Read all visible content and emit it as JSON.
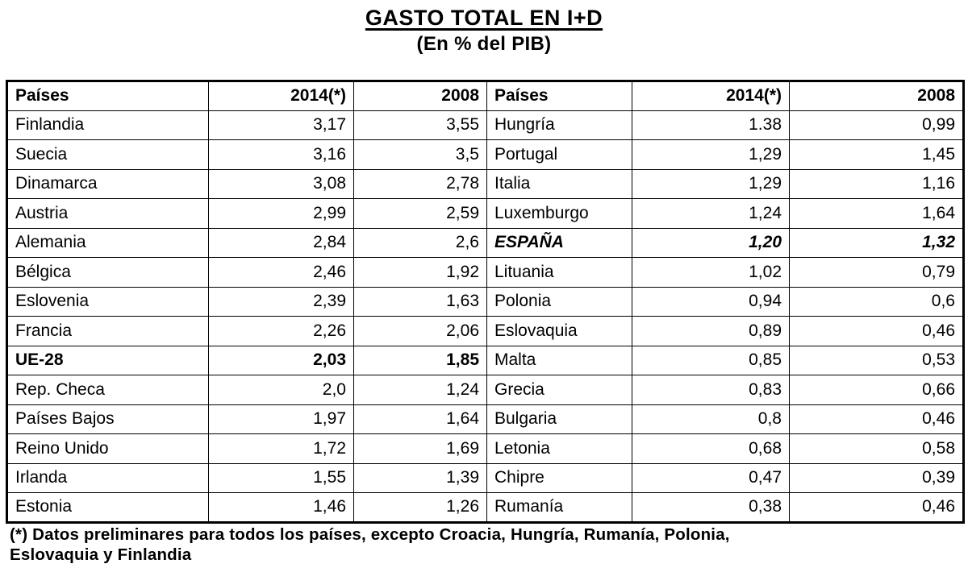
{
  "title": "GASTO TOTAL EN I+D",
  "subtitle": "(En % del PIB)",
  "table": {
    "headers": [
      "Países",
      "2014(*)",
      "2008",
      "Países",
      "2014(*)",
      "2008"
    ],
    "rows": [
      {
        "left": {
          "country": "Finlandia",
          "v2014": "3,17",
          "v2008": "3,55"
        },
        "right": {
          "country": "Hungría",
          "v2014": "1.38",
          "v2008": "0,99"
        }
      },
      {
        "left": {
          "country": "Suecia",
          "v2014": "3,16",
          "v2008": "3,5"
        },
        "right": {
          "country": "Portugal",
          "v2014": "1,29",
          "v2008": "1,45"
        }
      },
      {
        "left": {
          "country": "Dinamarca",
          "v2014": "3,08",
          "v2008": "2,78"
        },
        "right": {
          "country": "Italia",
          "v2014": "1,29",
          "v2008": "1,16"
        }
      },
      {
        "left": {
          "country": "Austria",
          "v2014": "2,99",
          "v2008": "2,59"
        },
        "right": {
          "country": "Luxemburgo",
          "v2014": "1,24",
          "v2008": "1,64"
        }
      },
      {
        "left": {
          "country": "Alemania",
          "v2014": "2,84",
          "v2008": "2,6"
        },
        "right": {
          "country": "ESPAÑA",
          "v2014": "1,20",
          "v2008": "1,32",
          "emphasis": "bold-italic"
        }
      },
      {
        "left": {
          "country": "Bélgica",
          "v2014": "2,46",
          "v2008": "1,92"
        },
        "right": {
          "country": "Lituania",
          "v2014": "1,02",
          "v2008": "0,79"
        }
      },
      {
        "left": {
          "country": "Eslovenia",
          "v2014": "2,39",
          "v2008": "1,63"
        },
        "right": {
          "country": "Polonia",
          "v2014": "0,94",
          "v2008": "0,6"
        }
      },
      {
        "left": {
          "country": "Francia",
          "v2014": "2,26",
          "v2008": "2,06"
        },
        "right": {
          "country": "Eslovaquia",
          "v2014": "0,89",
          "v2008": "0,46"
        }
      },
      {
        "left": {
          "country": "UE-28",
          "v2014": "2,03",
          "v2008": "1,85",
          "emphasis": "bold"
        },
        "right": {
          "country": "Malta",
          "v2014": "0,85",
          "v2008": "0,53"
        }
      },
      {
        "left": {
          "country": "Rep. Checa",
          "v2014": "2,0",
          "v2008": "1,24"
        },
        "right": {
          "country": "Grecia",
          "v2014": "0,83",
          "v2008": "0,66"
        }
      },
      {
        "left": {
          "country": "Países Bajos",
          "v2014": "1,97",
          "v2008": "1,64"
        },
        "right": {
          "country": "Bulgaria",
          "v2014": "0,8",
          "v2008": "0,46"
        }
      },
      {
        "left": {
          "country": "Reino Unido",
          "v2014": "1,72",
          "v2008": "1,69"
        },
        "right": {
          "country": "Letonia",
          "v2014": "0,68",
          "v2008": "0,58"
        }
      },
      {
        "left": {
          "country": "Irlanda",
          "v2014": "1,55",
          "v2008": "1,39"
        },
        "right": {
          "country": "Chipre",
          "v2014": "0,47",
          "v2008": "0,39"
        }
      },
      {
        "left": {
          "country": "Estonia",
          "v2014": "1,46",
          "v2008": "1,26"
        },
        "right": {
          "country": "Rumanía",
          "v2014": "0,38",
          "v2008": "0,46"
        }
      }
    ]
  },
  "footnote": {
    "lines": [
      "(*) Datos preliminares para todos los países, excepto Croacia, Hungría, Rumanía, Polonia,",
      "Eslovaquia y Finlandia"
    ]
  }
}
